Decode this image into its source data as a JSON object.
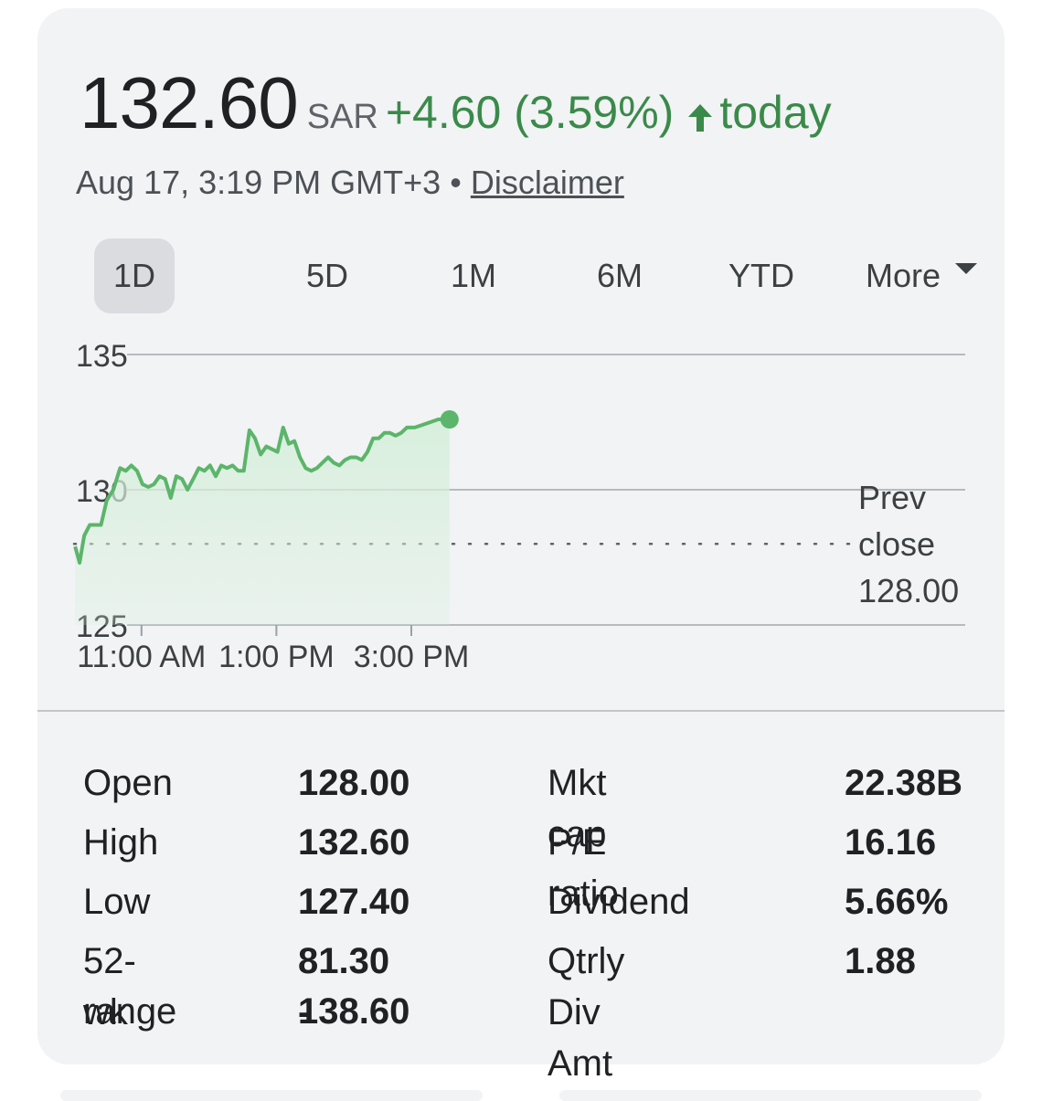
{
  "quote": {
    "price": "132.60",
    "currency": "SAR",
    "change": "+4.60 (3.59%)",
    "change_icon": "arrow-up-icon",
    "period": "today",
    "timestamp": "Aug 17, 3:19 PM GMT+3",
    "separator": "•",
    "disclaimer": "Disclaimer"
  },
  "tabs": [
    {
      "label": "1D",
      "active": true
    },
    {
      "label": "5D",
      "active": false
    },
    {
      "label": "1M",
      "active": false
    },
    {
      "label": "6M",
      "active": false
    },
    {
      "label": "YTD",
      "active": false
    },
    {
      "label": "More",
      "active": false
    }
  ],
  "colors": {
    "positive": "#3a8a4a",
    "line": "#5bb56a",
    "fill": "#d7efdc"
  },
  "chart_data": {
    "type": "line",
    "y_ticks": [
      "135",
      "130",
      "125"
    ],
    "ylim": [
      125,
      135
    ],
    "x_ticks": [
      "11:00 AM",
      "1:00 PM",
      "3:00 PM"
    ],
    "x_tick_minutes": [
      660,
      780,
      900
    ],
    "xlim": [
      600,
      960
    ],
    "prev_close": {
      "label_line1": "Prev",
      "label_line2": "close",
      "value": "128.00",
      "y": 128.0
    },
    "series": [
      {
        "x": [
          601,
          605,
          609,
          614,
          618,
          624,
          629,
          635,
          641,
          646,
          651,
          656,
          661,
          666,
          671,
          676,
          681,
          686,
          691,
          696,
          701,
          706,
          711,
          716,
          721,
          726,
          731,
          736,
          741,
          746,
          751,
          756,
          761,
          766,
          771,
          776,
          781,
          786,
          791,
          796,
          801,
          806,
          811,
          816,
          821,
          826,
          831,
          836,
          841,
          846,
          851,
          856,
          861,
          866,
          871,
          876,
          881,
          886,
          891,
          896,
          903,
          910,
          917,
          924,
          931,
          934
        ],
        "y": [
          127.9,
          127.3,
          128.3,
          128.7,
          128.7,
          128.7,
          129.6,
          130.0,
          130.8,
          130.7,
          130.9,
          130.7,
          130.2,
          130.1,
          130.2,
          130.5,
          130.4,
          129.7,
          130.5,
          130.4,
          130.0,
          130.4,
          130.8,
          130.7,
          130.9,
          130.5,
          130.9,
          130.8,
          130.9,
          130.7,
          130.7,
          132.2,
          131.9,
          131.3,
          131.6,
          131.5,
          131.4,
          132.3,
          131.7,
          131.8,
          131.2,
          130.8,
          130.7,
          130.8,
          131.0,
          131.2,
          131.0,
          130.9,
          131.1,
          131.2,
          131.2,
          131.1,
          131.4,
          131.9,
          131.9,
          132.1,
          132.1,
          132.0,
          132.1,
          132.3,
          132.3,
          132.4,
          132.5,
          132.6,
          132.6,
          132.6
        ]
      }
    ]
  },
  "stats": {
    "left": [
      {
        "label": "Open",
        "value": "128.00"
      },
      {
        "label": "High",
        "value": "132.60"
      },
      {
        "label": "Low",
        "value": "127.40"
      },
      {
        "label_lines": [
          "52-wk",
          "range"
        ],
        "value_lines": [
          "81.30 -",
          "138.60"
        ]
      }
    ],
    "right": [
      {
        "label": "Mkt cap",
        "value": "22.38B"
      },
      {
        "label": "P/E ratio",
        "value": "16.16"
      },
      {
        "label": "Dividend",
        "value": "5.66%"
      },
      {
        "label": "Qtrly Div Amt",
        "value": "1.88"
      }
    ]
  }
}
